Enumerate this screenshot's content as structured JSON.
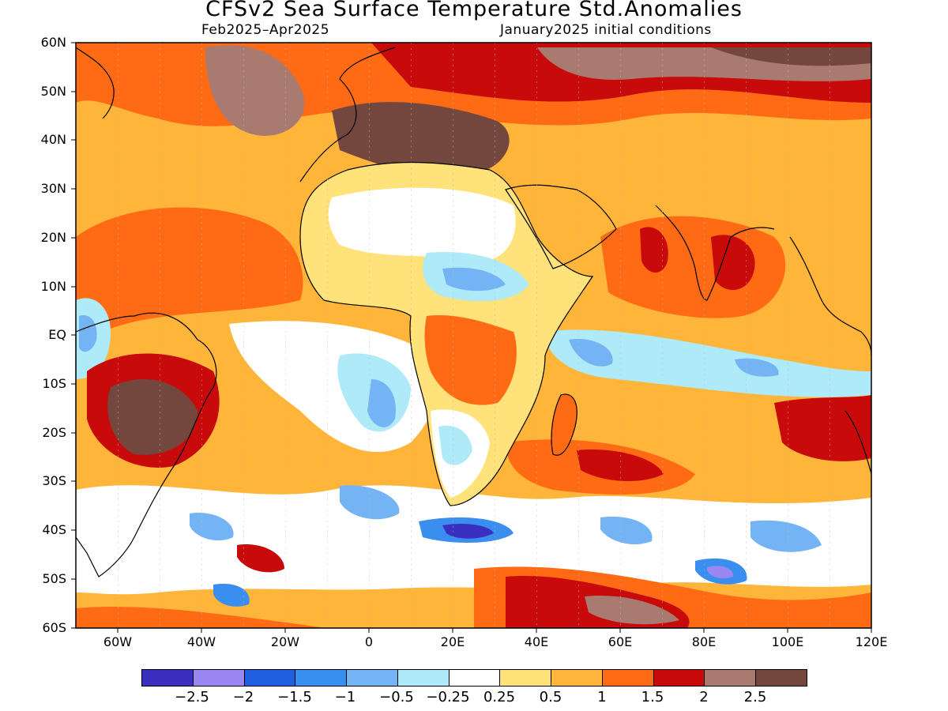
{
  "title": "CFSv2 Sea Surface Temperature Std.Anomalies",
  "subtitle_left": "Feb2025–Apr2025",
  "subtitle_right": "January2025 initial conditions",
  "lat_labels": [
    "60N",
    "50N",
    "40N",
    "30N",
    "20N",
    "10N",
    "EQ",
    "10S",
    "20S",
    "30S",
    "40S",
    "50S",
    "60S"
  ],
  "lon_labels": [
    "60W",
    "40W",
    "20W",
    "0",
    "20E",
    "40E",
    "60E",
    "80E",
    "100E",
    "120E"
  ],
  "colorbar": {
    "colors": [
      "#3b2fbf",
      "#9a87f2",
      "#1f5fe0",
      "#3a8ef0",
      "#74b4f4",
      "#aeeaf8",
      "#ffffff",
      "#ffe27a",
      "#ffb53a",
      "#ff6a14",
      "#c80a0a",
      "#a87a70",
      "#74473e"
    ],
    "tick_labels": [
      "−2.5",
      "−2",
      "−1.5",
      "−1",
      "−0.5",
      "−0.25",
      "0.25",
      "0.5",
      "1",
      "1.5",
      "2",
      "2.5"
    ]
  }
}
